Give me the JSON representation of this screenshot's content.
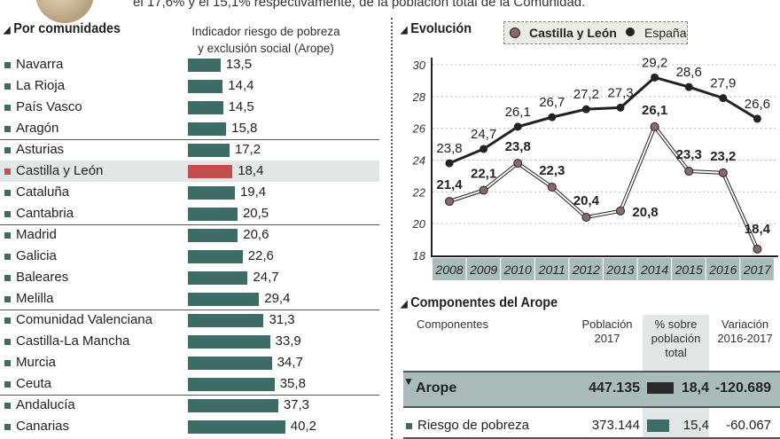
{
  "intro_text": "el 17,6% y el 15,1% respectivamente, de la población total de la Comunidad.",
  "left": {
    "title": "Por comunidades",
    "subtitle_line1": "Indicador riesgo de pobreza",
    "subtitle_line2": "y exclusión social (Arope)",
    "rows": [
      {
        "name": "Navarra",
        "value": "13,5",
        "v": 13.5
      },
      {
        "name": "La Rioja",
        "value": "14,4",
        "v": 14.4
      },
      {
        "name": "País Vasco",
        "value": "14,5",
        "v": 14.5
      },
      {
        "name": "Aragón",
        "value": "15,8",
        "v": 15.8
      },
      {
        "name": "Asturias",
        "value": "17,2",
        "v": 17.2
      },
      {
        "name": "Castilla y León",
        "value": "18,4",
        "v": 18.4,
        "highlight": true
      },
      {
        "name": "Cataluña",
        "value": "19,4",
        "v": 19.4
      },
      {
        "name": "Cantabria",
        "value": "20,5",
        "v": 20.5
      },
      {
        "name": "Madrid",
        "value": "20,6",
        "v": 20.6
      },
      {
        "name": "Galicia",
        "value": "22,6",
        "v": 22.6
      },
      {
        "name": "Baleares",
        "value": "24,7",
        "v": 24.7
      },
      {
        "name": "Melilla",
        "value": "29,4",
        "v": 29.4
      },
      {
        "name": "Comunidad Valenciana",
        "value": "31,3",
        "v": 31.3
      },
      {
        "name": "Castilla-La Mancha",
        "value": "33,9",
        "v": 33.9
      },
      {
        "name": "Murcia",
        "value": "34,7",
        "v": 34.7
      },
      {
        "name": "Ceuta",
        "value": "35,8",
        "v": 35.8
      },
      {
        "name": "Andalucía",
        "value": "37,3",
        "v": 37.3
      },
      {
        "name": "Canarias",
        "value": "40,2",
        "v": 40.2
      }
    ]
  },
  "chart_data": {
    "type": "line",
    "title": "Evolución",
    "x": [
      "2008",
      "2009",
      "2010",
      "2011",
      "2012",
      "2013",
      "2014",
      "2015",
      "2016",
      "2017"
    ],
    "ylim": [
      18,
      30
    ],
    "yticks": [
      "18",
      "20",
      "22",
      "24",
      "26",
      "28",
      "30"
    ],
    "grid": true,
    "legend": "top",
    "series": [
      {
        "name": "Castilla y León",
        "values": [
          21.4,
          22.1,
          23.8,
          22.3,
          20.4,
          20.8,
          26.1,
          23.3,
          23.2,
          18.4
        ],
        "labels": [
          "21,4",
          "22,1",
          "23,8",
          "22,3",
          "20,4",
          "20,8",
          "26,1",
          "23,3",
          "23,2",
          "18,4"
        ],
        "color": "#8a6a66"
      },
      {
        "name": "España",
        "values": [
          23.8,
          24.7,
          26.1,
          26.7,
          27.2,
          27.3,
          29.2,
          28.6,
          27.9,
          26.6
        ],
        "labels": [
          "23,8",
          "24,7",
          "26,1",
          "26,7",
          "27,2",
          "27,3",
          "29,2",
          "28,6",
          "27,9",
          "26,6"
        ],
        "color": "#222222"
      }
    ]
  },
  "table": {
    "title": "Componentes del Arope",
    "headers": [
      "Componentes",
      "Población\n2017",
      "% sobre\npoblación\ntotal",
      "Variación\n2016-2017"
    ],
    "rows": [
      {
        "name": "Arope",
        "population": "447.135",
        "pct": "18,4",
        "variation": "-120.689"
      },
      {
        "name": "Riesgo de pobreza",
        "population": "373.144",
        "pct": "15,4",
        "variation": "-60.067"
      }
    ]
  }
}
